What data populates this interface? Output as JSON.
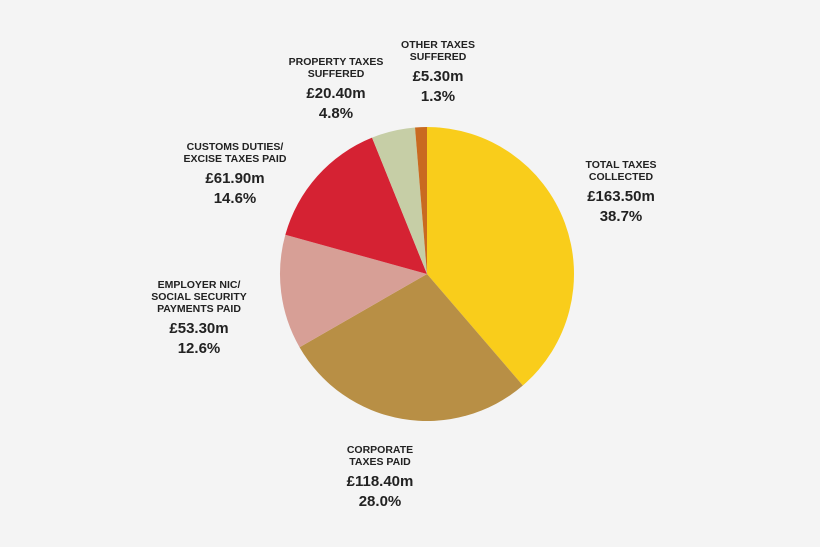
{
  "chart_data": {
    "type": "pie",
    "title": "",
    "slices": [
      {
        "label_lines": [
          "TOTAL TAXES",
          "COLLECTED"
        ],
        "amount": "£163.50m",
        "percent": "38.7%",
        "value": 38.7,
        "color": "#f9cd1b"
      },
      {
        "label_lines": [
          "CORPORATE",
          "TAXES PAID"
        ],
        "amount": "£118.40m",
        "percent": "28.0%",
        "value": 28.0,
        "color": "#b88f45"
      },
      {
        "label_lines": [
          "EMPLOYER NIC/",
          "SOCIAL SECURITY",
          "PAYMENTS PAID"
        ],
        "amount": "£53.30m",
        "percent": "12.6%",
        "value": 12.6,
        "color": "#d79f96"
      },
      {
        "label_lines": [
          "CUSTOMS DUTIES/",
          "EXCISE TAXES PAID"
        ],
        "amount": "£61.90m",
        "percent": "14.6%",
        "value": 14.6,
        "color": "#d52233"
      },
      {
        "label_lines": [
          "PROPERTY TAXES",
          "SUFFERED"
        ],
        "amount": "£20.40m",
        "percent": "4.8%",
        "value": 4.8,
        "color": "#c6cea6"
      },
      {
        "label_lines": [
          "OTHER TAXES",
          "SUFFERED"
        ],
        "amount": "£5.30m",
        "percent": "1.3%",
        "value": 1.3,
        "color": "#c96a20"
      }
    ],
    "legend": "none"
  }
}
